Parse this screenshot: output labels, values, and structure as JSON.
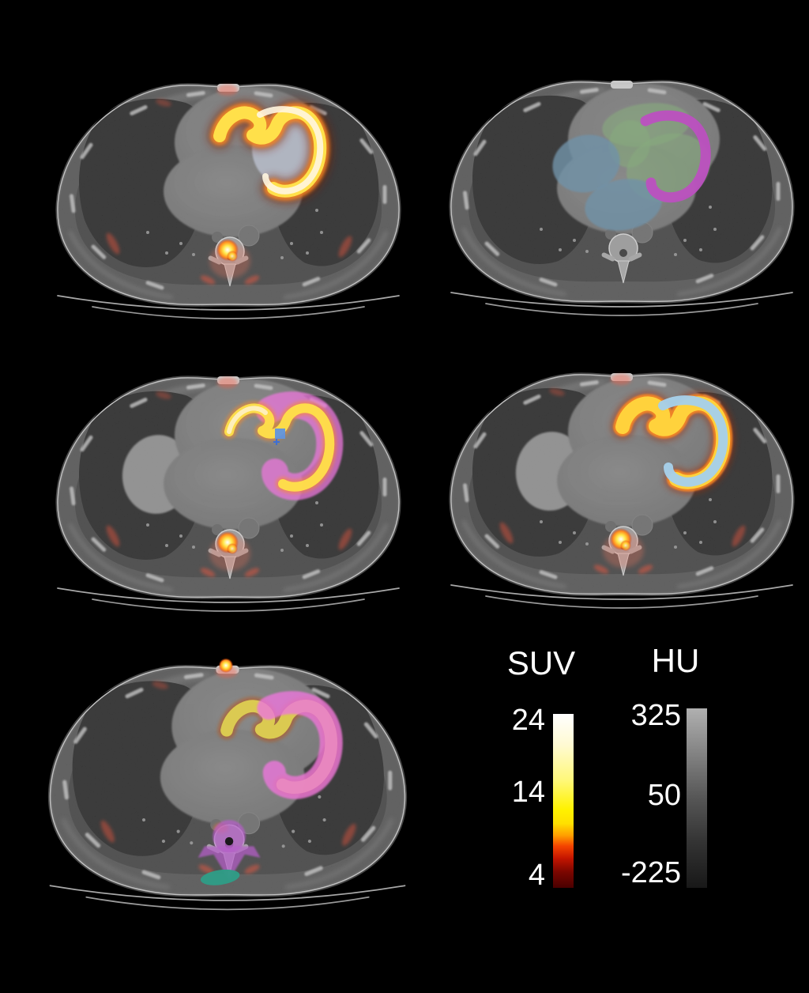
{
  "figure": {
    "panels": [
      {
        "name": "axial-slice-pet-fusion-myocardium"
      },
      {
        "name": "axial-slice-ct-chamber-segmentation"
      },
      {
        "name": "axial-slice-pet-fusion-magenta-overlay-with-marker"
      },
      {
        "name": "axial-slice-pet-fusion-light-blue-overlay"
      },
      {
        "name": "axial-slice-pet-fusion-magenta-overlay-spine-segmentation"
      }
    ],
    "legend": {
      "suv": {
        "label": "SUV",
        "ticks": [
          "24",
          "14",
          "4"
        ]
      },
      "hu": {
        "label": "HU",
        "ticks": [
          "325",
          "50",
          "-225"
        ]
      }
    },
    "colors": {
      "background": "#000000",
      "text": "#ffffff",
      "suv_scale_stops": [
        "#ffffff",
        "#fffad2",
        "#fff87a",
        "#fff200",
        "#ffe000",
        "#ff9d00",
        "#f44400",
        "#c41500",
        "#7a0600",
        "#4a0000"
      ],
      "hu_scale_stops": [
        "#b0b0b0",
        "#565656",
        "#333333",
        "#181818"
      ],
      "pet_core_white": "#fff6e0",
      "pet_yellow": "#ffe04a",
      "pet_orange": "#ff8a20",
      "pet_dark_red": "#7e1e06",
      "overlay_magenta_pink": "#ec77dc",
      "overlay_magenta_purple": "#bc50c0",
      "overlay_sage_green": "#87aa7e",
      "overlay_slate_blue": "#7192a7",
      "overlay_light_blue": "#a6cfe9",
      "overlay_teal": "#2f9c86",
      "overlay_violet": "#b75ecb",
      "overlay_olive_yellow": "#e0d352",
      "marker_blue": "#6093de",
      "cavity_gray": "#b5bac6"
    }
  }
}
